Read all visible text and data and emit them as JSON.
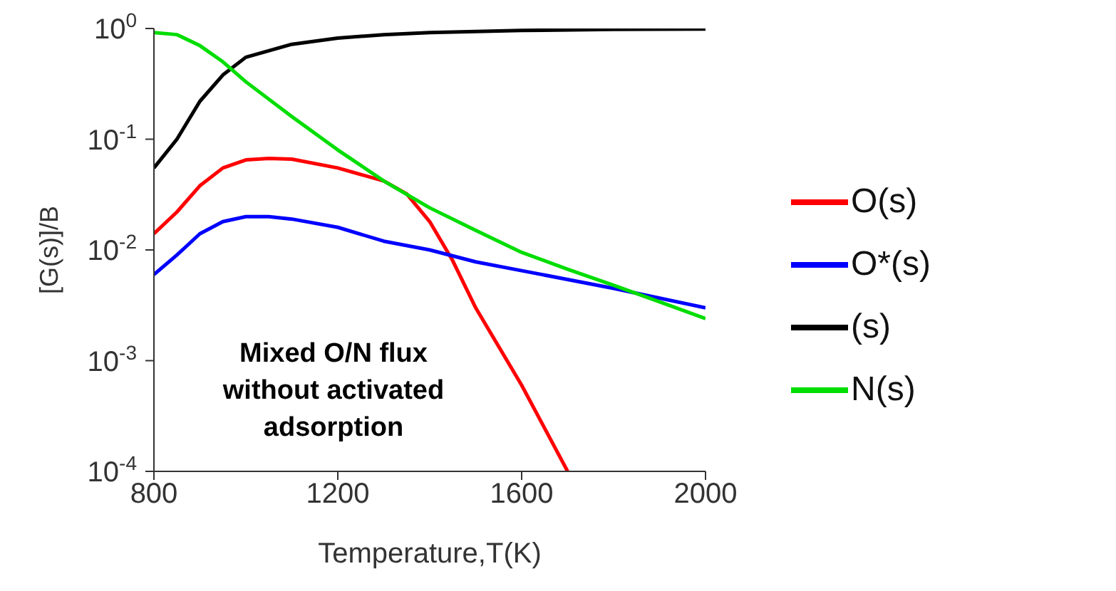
{
  "chart_data": {
    "type": "line",
    "xlabel": "Temperature,T(K)",
    "ylabel": "[G(s)]/B",
    "log": "y",
    "xlim": [
      800,
      2000
    ],
    "xticks": [
      800,
      1200,
      1600,
      2000
    ],
    "ylim": [
      0.0001,
      1
    ],
    "yticks": [
      {
        "value": 0.0001,
        "label": "10$^{-4}$"
      },
      {
        "value": 0.001,
        "label": "10$^{-3}$"
      },
      {
        "value": 0.01,
        "label": "10$^{-2}$"
      },
      {
        "value": 0.1,
        "label": "10$^{-1}$"
      },
      {
        "value": 1,
        "label": "10$^{0}$"
      }
    ],
    "legend": "right",
    "grid": false,
    "marker": "none",
    "line_style": "solid",
    "annotations": [
      "Mixed O/N flux\nwithout activated\nadsorption"
    ],
    "series": [
      {
        "name": "O(s)",
        "color": "#ff0000",
        "x": [
          800,
          850,
          900,
          950,
          1000,
          1050,
          1100,
          1200,
          1300,
          1350,
          1400,
          1450,
          1500,
          1600,
          1700
        ],
        "values": [
          0.014,
          0.022,
          0.038,
          0.055,
          0.065,
          0.067,
          0.066,
          0.055,
          0.042,
          0.032,
          0.018,
          0.008,
          0.003,
          0.0006,
          0.0001
        ]
      },
      {
        "name": "O*(s)",
        "color": "#0000ff",
        "x": [
          800,
          850,
          900,
          950,
          1000,
          1050,
          1100,
          1200,
          1300,
          1400,
          1500,
          1600,
          1800,
          2000
        ],
        "values": [
          0.006,
          0.009,
          0.014,
          0.018,
          0.02,
          0.02,
          0.019,
          0.016,
          0.012,
          0.01,
          0.0078,
          0.0065,
          0.0045,
          0.003
        ]
      },
      {
        "name": "(s)",
        "color": "#000000",
        "x": [
          800,
          850,
          900,
          950,
          1000,
          1100,
          1200,
          1300,
          1400,
          1600,
          1800,
          2000
        ],
        "values": [
          0.055,
          0.1,
          0.22,
          0.38,
          0.55,
          0.72,
          0.82,
          0.88,
          0.92,
          0.96,
          0.98,
          0.99
        ]
      },
      {
        "name": "N(s)",
        "color": "#00dd00",
        "x": [
          800,
          850,
          900,
          950,
          1000,
          1100,
          1200,
          1300,
          1400,
          1500,
          1600,
          1700,
          1800,
          1900,
          2000
        ],
        "values": [
          0.92,
          0.88,
          0.7,
          0.5,
          0.33,
          0.16,
          0.08,
          0.042,
          0.024,
          0.015,
          0.0095,
          0.0067,
          0.0048,
          0.0034,
          0.0024
        ]
      }
    ]
  }
}
